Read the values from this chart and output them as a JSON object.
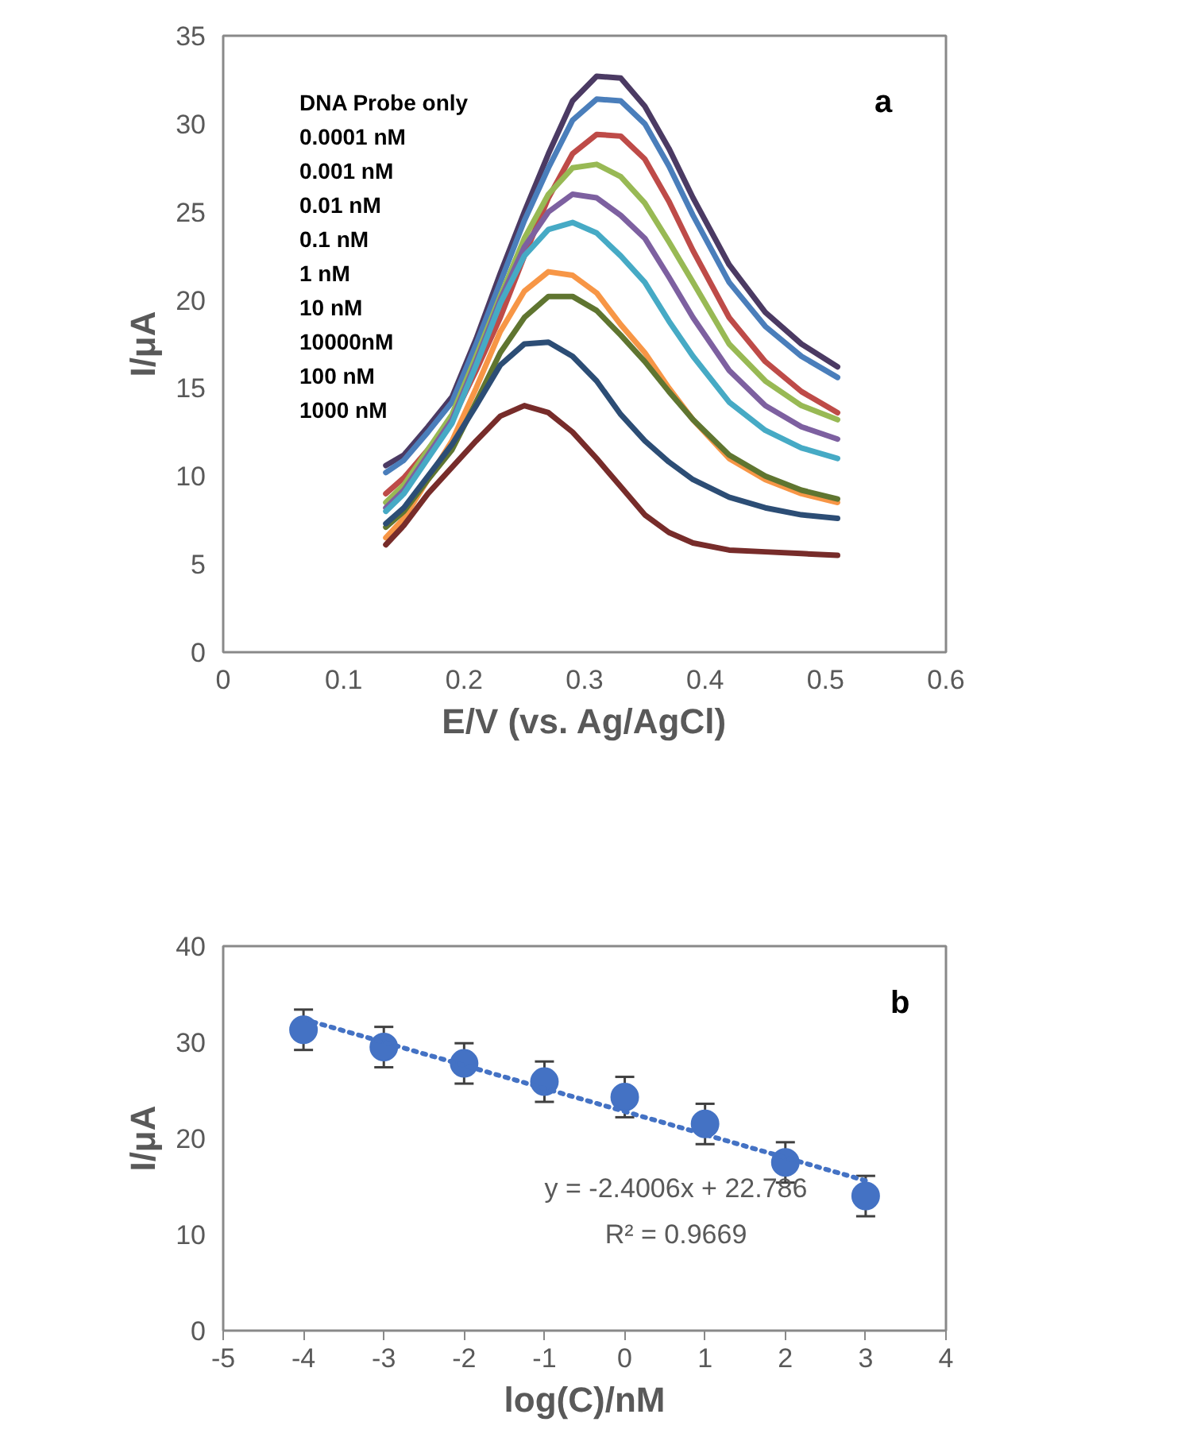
{
  "chart_data": [
    {
      "type": "line",
      "xlabel": "E/V (vs. Ag/AgCl)",
      "ylabel": "I/μA",
      "x": [
        0.135,
        0.15,
        0.17,
        0.19,
        0.21,
        0.23,
        0.25,
        0.27,
        0.29,
        0.31,
        0.33,
        0.35,
        0.37,
        0.39,
        0.42,
        0.45,
        0.48,
        0.51
      ],
      "series": [
        {
          "color": "#4b3a63",
          "values": [
            10.6,
            11.2,
            12.8,
            14.5,
            17.8,
            21.5,
            25.0,
            28.3,
            31.3,
            32.7,
            32.6,
            31.0,
            28.6,
            25.8,
            22.0,
            19.3,
            17.5,
            16.2
          ]
        },
        {
          "color": "#4a7ebb",
          "values": [
            10.2,
            10.9,
            12.5,
            14.2,
            17.5,
            21.0,
            24.5,
            27.5,
            30.2,
            31.4,
            31.3,
            30.0,
            27.6,
            24.8,
            21.0,
            18.5,
            16.8,
            15.6
          ]
        },
        {
          "color": "#be4b48",
          "values": [
            9.0,
            9.9,
            11.5,
            13.2,
            16.0,
            19.0,
            22.5,
            25.8,
            28.3,
            29.4,
            29.3,
            28.0,
            25.6,
            22.8,
            19.0,
            16.5,
            14.8,
            13.6
          ]
        },
        {
          "color": "#98b954",
          "values": [
            8.5,
            9.5,
            11.5,
            13.5,
            16.8,
            20.2,
            23.5,
            26.0,
            27.5,
            27.7,
            27.0,
            25.5,
            23.3,
            21.0,
            17.5,
            15.4,
            14.0,
            13.2
          ]
        },
        {
          "color": "#7d60a0",
          "values": [
            8.2,
            9.2,
            11.2,
            13.2,
            16.5,
            20.0,
            23.0,
            25.0,
            26.0,
            25.8,
            24.8,
            23.5,
            21.3,
            19.0,
            16.0,
            14.0,
            12.8,
            12.1
          ]
        },
        {
          "color": "#46aac5",
          "values": [
            8.0,
            9.0,
            11.0,
            13.0,
            16.3,
            19.8,
            22.5,
            24.0,
            24.4,
            23.8,
            22.5,
            21.0,
            18.8,
            16.8,
            14.2,
            12.6,
            11.6,
            11.0
          ]
        },
        {
          "color": "#f79646",
          "values": [
            6.5,
            7.6,
            9.8,
            12.0,
            15.0,
            18.2,
            20.5,
            21.6,
            21.4,
            20.4,
            18.6,
            17.0,
            15.0,
            13.2,
            11.0,
            9.8,
            9.0,
            8.5
          ]
        },
        {
          "color": "#5f7530",
          "values": [
            7.1,
            8.0,
            9.8,
            11.5,
            14.2,
            17.0,
            19.0,
            20.2,
            20.2,
            19.4,
            18.0,
            16.5,
            14.8,
            13.2,
            11.2,
            10.0,
            9.2,
            8.7
          ]
        },
        {
          "color": "#2c4d75",
          "values": [
            7.3,
            8.2,
            10.0,
            11.8,
            14.0,
            16.3,
            17.5,
            17.6,
            16.8,
            15.4,
            13.5,
            12.0,
            10.8,
            9.8,
            8.8,
            8.2,
            7.8,
            7.6
          ]
        },
        {
          "color": "#772c2a",
          "values": [
            6.1,
            7.2,
            9.0,
            10.5,
            12.0,
            13.4,
            14.0,
            13.6,
            12.5,
            11.0,
            9.4,
            7.8,
            6.8,
            6.2,
            5.8,
            5.7,
            5.6,
            5.5
          ]
        }
      ],
      "xlim": [
        0,
        0.6
      ],
      "xticks": [
        0,
        0.1,
        0.2,
        0.3,
        0.4,
        0.5,
        0.6
      ],
      "ylim": [
        0,
        35
      ],
      "yticks": [
        0,
        5,
        10,
        15,
        20,
        25,
        30,
        35
      ],
      "grid": false,
      "marker": "none",
      "line_style": "solid",
      "annotations": [
        "DNA Probe only",
        "0.0001 nM",
        "0.001 nM",
        "0.01 nM",
        "0.1 nM",
        "1 nM",
        "10 nM",
        "10000nM",
        "100 nM",
        "1000 nM",
        "a"
      ]
    },
    {
      "type": "scatter",
      "xlabel": "log(C)/nM",
      "ylabel": "I/μA",
      "series": [
        {
          "type": "scatter",
          "color": "#4472c4",
          "marker": "circle",
          "x": [
            -4,
            -3,
            -2,
            -1,
            0,
            1,
            2,
            3
          ],
          "values": [
            31.3,
            29.5,
            27.8,
            25.9,
            24.3,
            21.5,
            17.5,
            14.0
          ],
          "errors": [
            2.1,
            2.1,
            2.1,
            2.1,
            2.1,
            2.1,
            2.1,
            2.1
          ]
        },
        {
          "type": "line",
          "color": "#4472c4",
          "marker": "none",
          "line_style": "dotted",
          "x": [
            -4,
            3
          ],
          "values": [
            32.4,
            15.6
          ]
        }
      ],
      "xlim": [
        -5,
        4
      ],
      "xticks": [
        -5,
        -4,
        -3,
        -2,
        -1,
        0,
        1,
        2,
        3,
        4
      ],
      "ylim": [
        0,
        40
      ],
      "yticks": [
        0,
        10,
        20,
        30,
        40
      ],
      "grid": false,
      "annotations": [
        "b",
        "y = -2.4006x + 22.786",
        "R² = 0.9669"
      ]
    }
  ]
}
